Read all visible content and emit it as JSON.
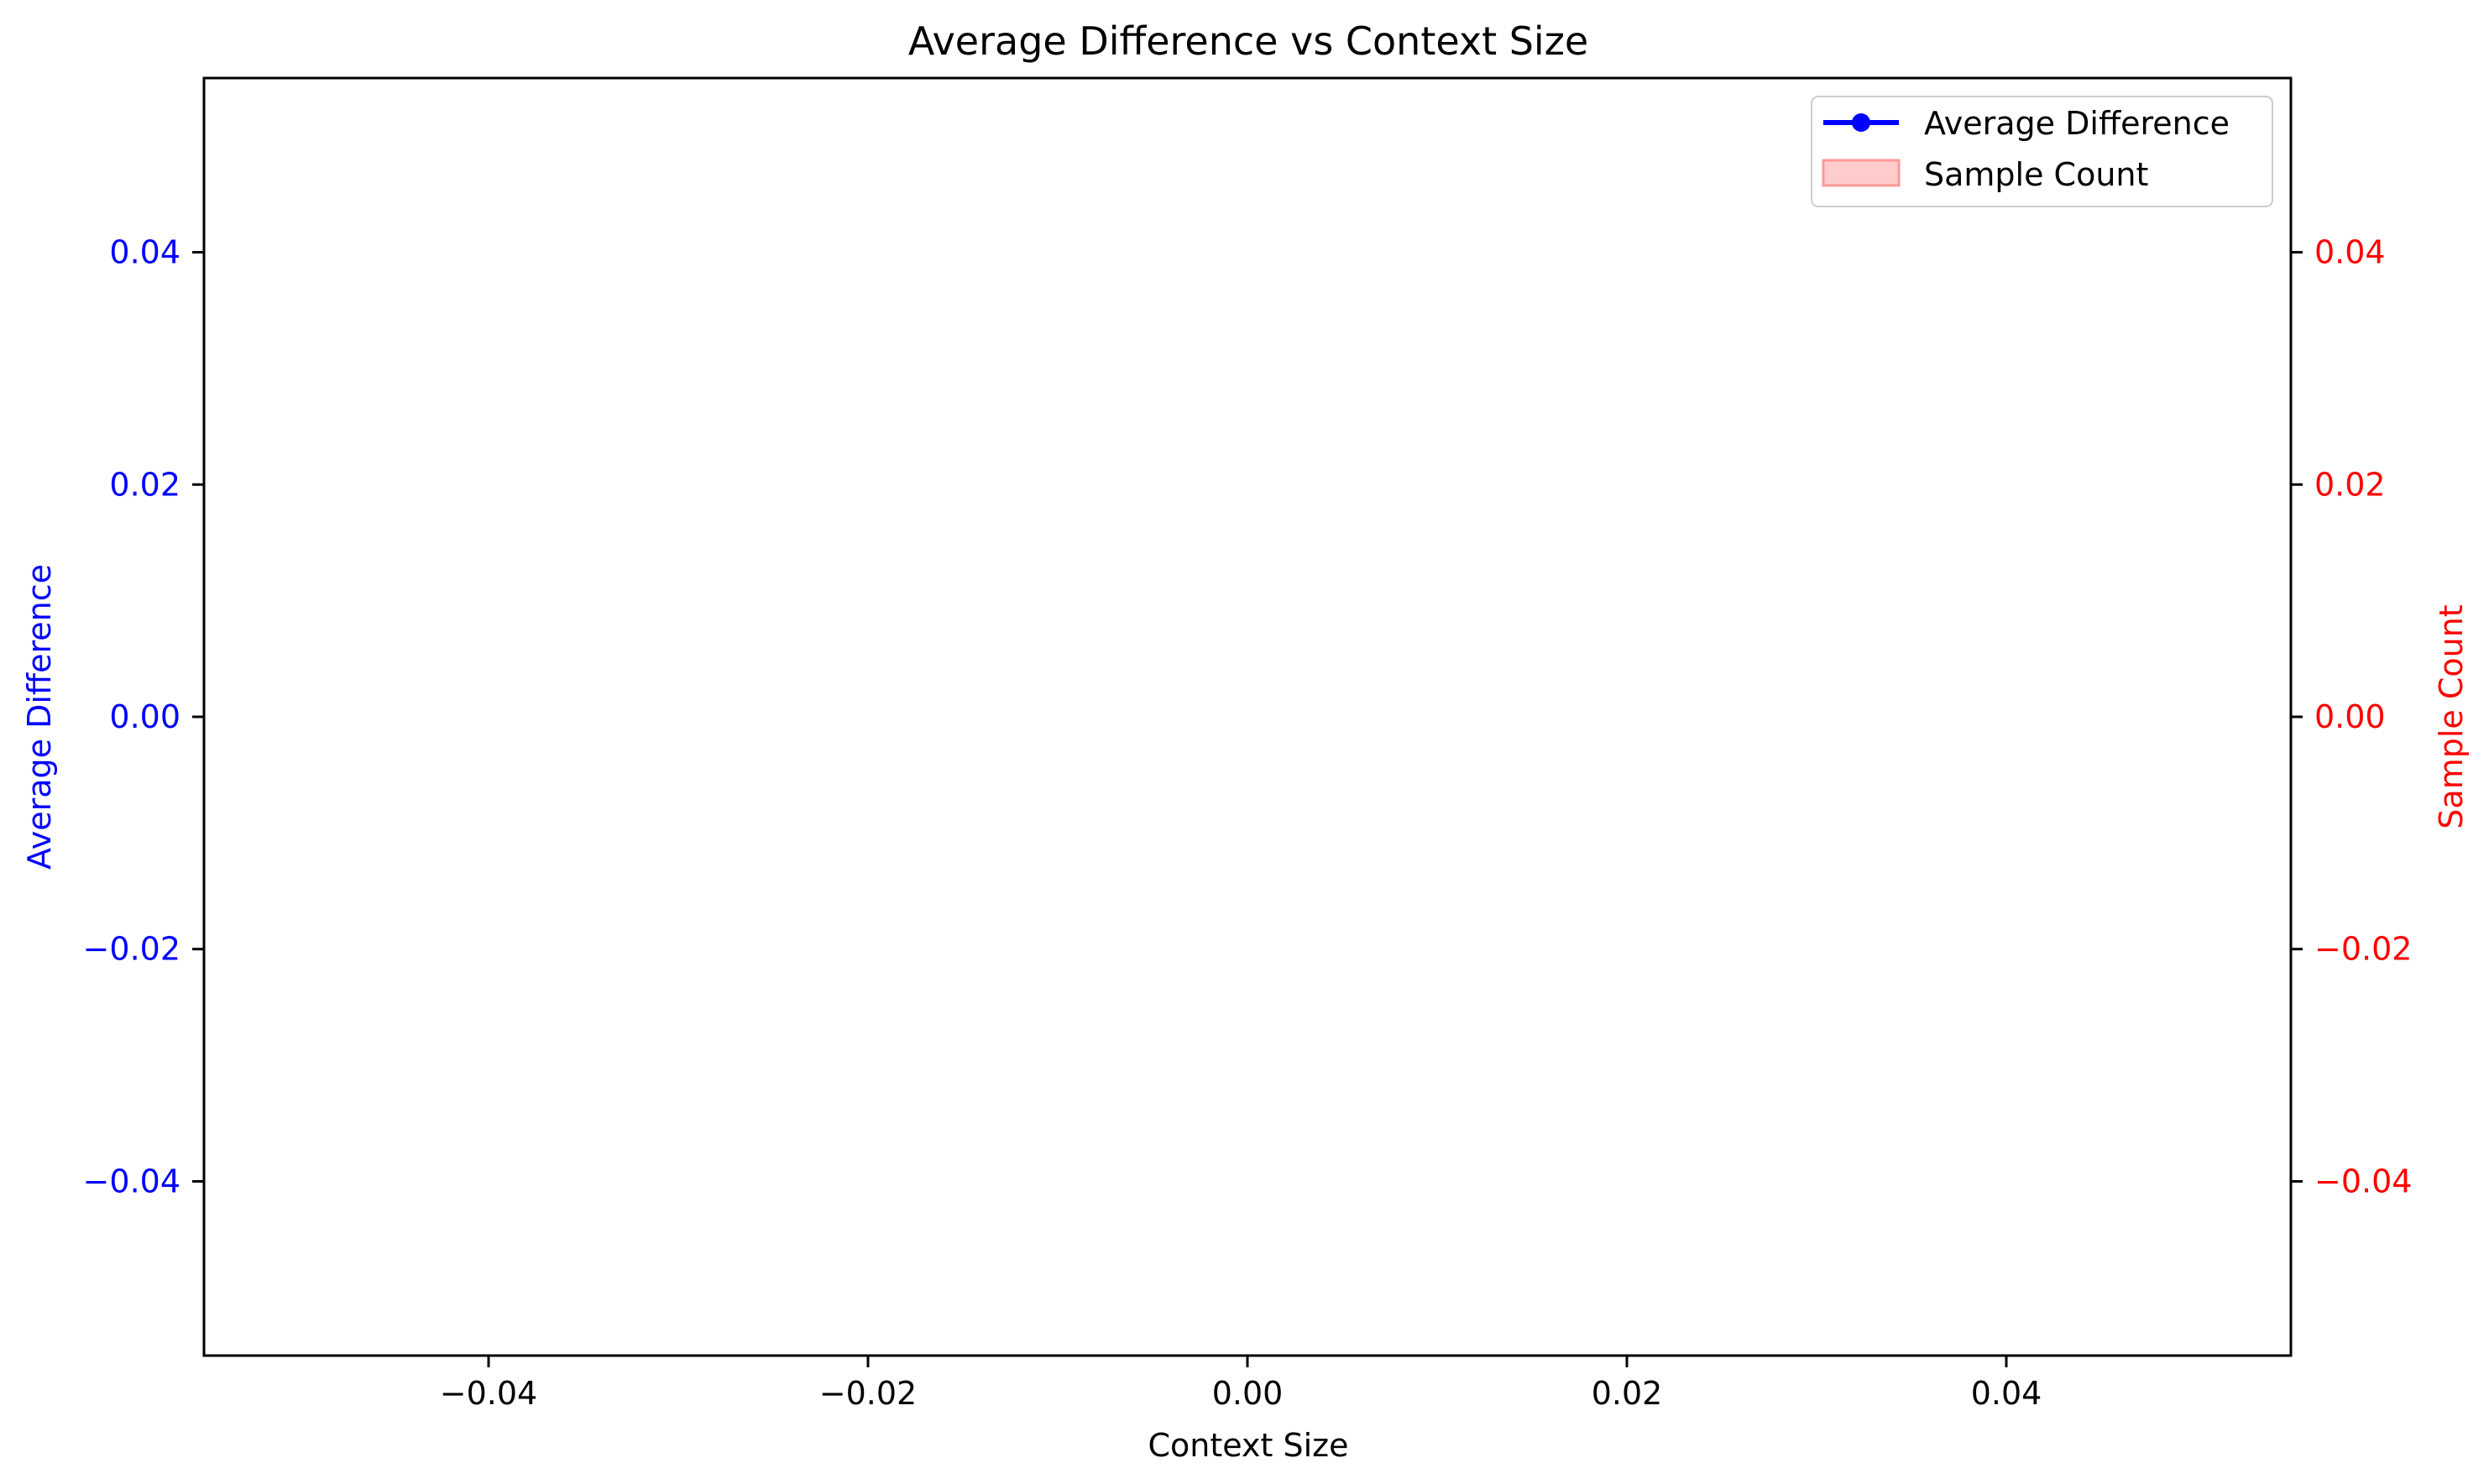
{
  "chart_data": {
    "type": "line",
    "title": "Average Difference vs Context Size",
    "xlabel": "Context Size",
    "ylabel": "Average Difference",
    "y2label": "Sample Count",
    "xlim": [
      -0.055,
      0.055
    ],
    "ylim": [
      -0.055,
      0.055
    ],
    "y2lim": [
      -0.055,
      0.055
    ],
    "x_ticks": [
      -0.04,
      -0.02,
      0.0,
      0.02,
      0.04
    ],
    "x_tick_labels": [
      "−0.04",
      "−0.02",
      "0.00",
      "0.02",
      "0.04"
    ],
    "y_ticks": [
      0.04,
      0.02,
      0.0,
      -0.02,
      -0.04
    ],
    "y_tick_labels": [
      "0.04",
      "0.02",
      "0.00",
      "−0.02",
      "−0.04"
    ],
    "y2_ticks": [
      0.04,
      0.02,
      0.0,
      -0.02,
      -0.04
    ],
    "y2_tick_labels": [
      "0.04",
      "0.02",
      "0.00",
      "−0.02",
      "−0.04"
    ],
    "series": [
      {
        "name": "Average Difference",
        "axis": "left",
        "kind": "line",
        "x": [],
        "values": []
      },
      {
        "name": "Sample Count",
        "axis": "right",
        "kind": "area",
        "x": [],
        "values": []
      }
    ],
    "grid": false,
    "legend": "top-right",
    "colors": {
      "average_difference": "#0000ff",
      "sample_count_fill": "#ffcccc",
      "sample_count_edge": "#ff9999",
      "left_axis": "#0000ff",
      "right_axis": "#ff0000",
      "frame": "#000000"
    }
  }
}
